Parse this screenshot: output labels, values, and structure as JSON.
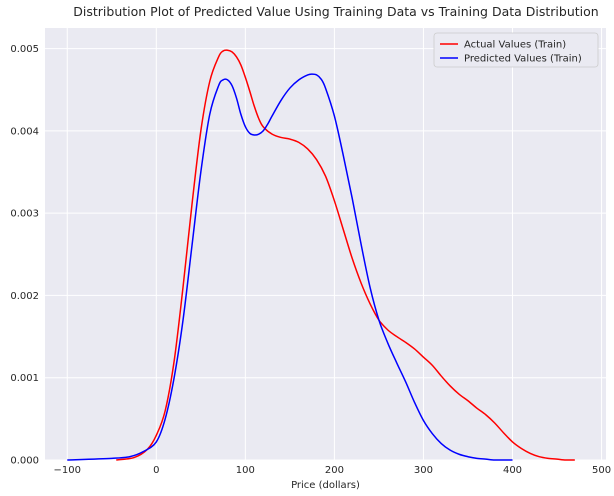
{
  "chart_data": {
    "type": "line",
    "title": "Distribution  Plot of  Predicted Value Using Training Data vs Training Data Distribution",
    "xlabel": "Price (dollars)",
    "ylabel": "",
    "xlim": [
      -125,
      505
    ],
    "ylim": [
      0,
      0.00525
    ],
    "xticks": [
      -100,
      0,
      100,
      200,
      300,
      400,
      500
    ],
    "yticks": [
      0.0,
      0.001,
      0.002,
      0.003,
      0.004,
      0.005
    ],
    "xtick_labels": [
      "−100",
      "0",
      "100",
      "200",
      "300",
      "400",
      "500"
    ],
    "ytick_labels": [
      "0.000",
      "0.001",
      "0.002",
      "0.003",
      "0.004",
      "0.005"
    ],
    "grid": true,
    "legend_position": "top-right",
    "background_color": "#eaeaf2",
    "series": [
      {
        "name": "Actual Values (Train)",
        "color": "#ff0000",
        "x": [
          -45,
          -25,
          -10,
          0,
          10,
          20,
          30,
          40,
          50,
          60,
          70,
          75,
          80,
          85,
          90,
          95,
          100,
          105,
          110,
          115,
          120,
          130,
          140,
          150,
          160,
          170,
          180,
          190,
          200,
          210,
          220,
          230,
          240,
          250,
          260,
          270,
          280,
          290,
          300,
          310,
          320,
          330,
          340,
          350,
          360,
          370,
          380,
          390,
          400,
          410,
          420,
          430,
          440,
          450,
          460,
          470
        ],
        "values": [
          0.0,
          3e-05,
          0.00013,
          0.0003,
          0.0006,
          0.0012,
          0.0021,
          0.0031,
          0.004,
          0.0046,
          0.0049,
          0.00497,
          0.00498,
          0.00496,
          0.0049,
          0.0048,
          0.00465,
          0.00448,
          0.0043,
          0.00415,
          0.00405,
          0.00396,
          0.00392,
          0.0039,
          0.00386,
          0.00378,
          0.00365,
          0.00345,
          0.00315,
          0.0028,
          0.00245,
          0.00215,
          0.0019,
          0.0017,
          0.00158,
          0.0015,
          0.00143,
          0.00135,
          0.00125,
          0.00115,
          0.00102,
          0.0009,
          0.0008,
          0.00072,
          0.00063,
          0.00055,
          0.00045,
          0.00033,
          0.00022,
          0.00014,
          8e-05,
          4e-05,
          2e-05,
          1e-05,
          0.0,
          0.0
        ]
      },
      {
        "name": "Predicted Values (Train)",
        "color": "#0000ff",
        "x": [
          -100,
          -50,
          -30,
          -15,
          0,
          10,
          20,
          30,
          40,
          50,
          60,
          70,
          75,
          80,
          85,
          90,
          95,
          100,
          105,
          110,
          115,
          120,
          125,
          130,
          140,
          150,
          160,
          170,
          175,
          180,
          185,
          190,
          200,
          210,
          220,
          230,
          240,
          250,
          260,
          270,
          280,
          290,
          300,
          310,
          320,
          330,
          340,
          350,
          360,
          370,
          380,
          390,
          400
        ],
        "values": [
          0.0,
          2e-05,
          4e-05,
          0.0001,
          0.00022,
          0.0005,
          0.001,
          0.0017,
          0.0026,
          0.0035,
          0.0042,
          0.00455,
          0.00462,
          0.00462,
          0.00455,
          0.0044,
          0.0042,
          0.00405,
          0.00397,
          0.00395,
          0.00396,
          0.004,
          0.00408,
          0.00418,
          0.00437,
          0.00452,
          0.00462,
          0.00468,
          0.00469,
          0.00468,
          0.00463,
          0.00452,
          0.00418,
          0.0037,
          0.00318,
          0.00262,
          0.0021,
          0.0017,
          0.00142,
          0.00118,
          0.00095,
          0.0007,
          0.00048,
          0.00032,
          0.0002,
          0.00012,
          7e-05,
          4e-05,
          2e-05,
          1e-05,
          0.0,
          0.0,
          0.0
        ]
      }
    ]
  }
}
